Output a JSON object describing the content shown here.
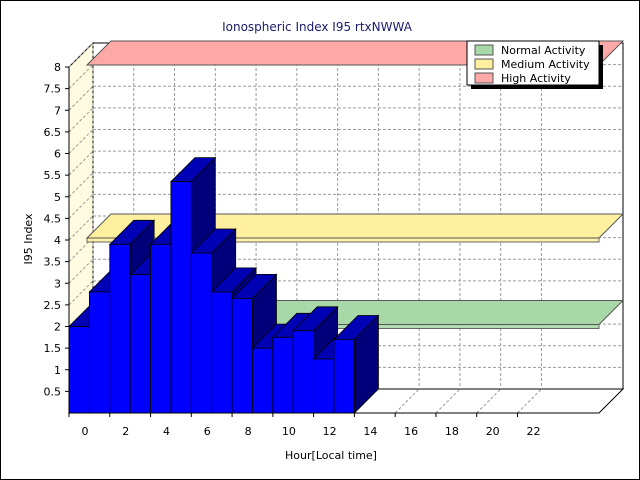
{
  "chart_data": {
    "type": "bar",
    "title": "Ionospheric Index I95 rtxNWWA",
    "xlabel": "Hour[Local time]",
    "ylabel": "I95 Index",
    "x_ticks": [
      "0",
      "2",
      "4",
      "6",
      "8",
      "10",
      "12",
      "14",
      "16",
      "18",
      "20",
      "22"
    ],
    "y_ticks": [
      "0.5",
      "1",
      "1.5",
      "2",
      "2.5",
      "3",
      "3.5",
      "4",
      "4.5",
      "5",
      "5.5",
      "6",
      "6.5",
      "7",
      "7.5",
      "8"
    ],
    "xlim": [
      0,
      26
    ],
    "ylim": [
      0,
      8
    ],
    "grid": true,
    "legend_position": "top-right",
    "hours": [
      0,
      1,
      2,
      3,
      4,
      5,
      6,
      7,
      8,
      9,
      10,
      11,
      12,
      13
    ],
    "values": [
      2.0,
      2.8,
      3.9,
      3.2,
      3.9,
      5.35,
      3.7,
      2.8,
      2.65,
      1.5,
      1.75,
      1.9,
      1.25,
      1.7
    ],
    "bar_color": "#0000ff",
    "bands": [
      {
        "name": "Normal Activity",
        "y": 2.0,
        "color": "#a8d8a8"
      },
      {
        "name": "Medium Activity",
        "y": 4.0,
        "color": "#fff0a0"
      },
      {
        "name": "High Activity",
        "y": 8.0,
        "color": "#ffa8a8"
      }
    ]
  }
}
